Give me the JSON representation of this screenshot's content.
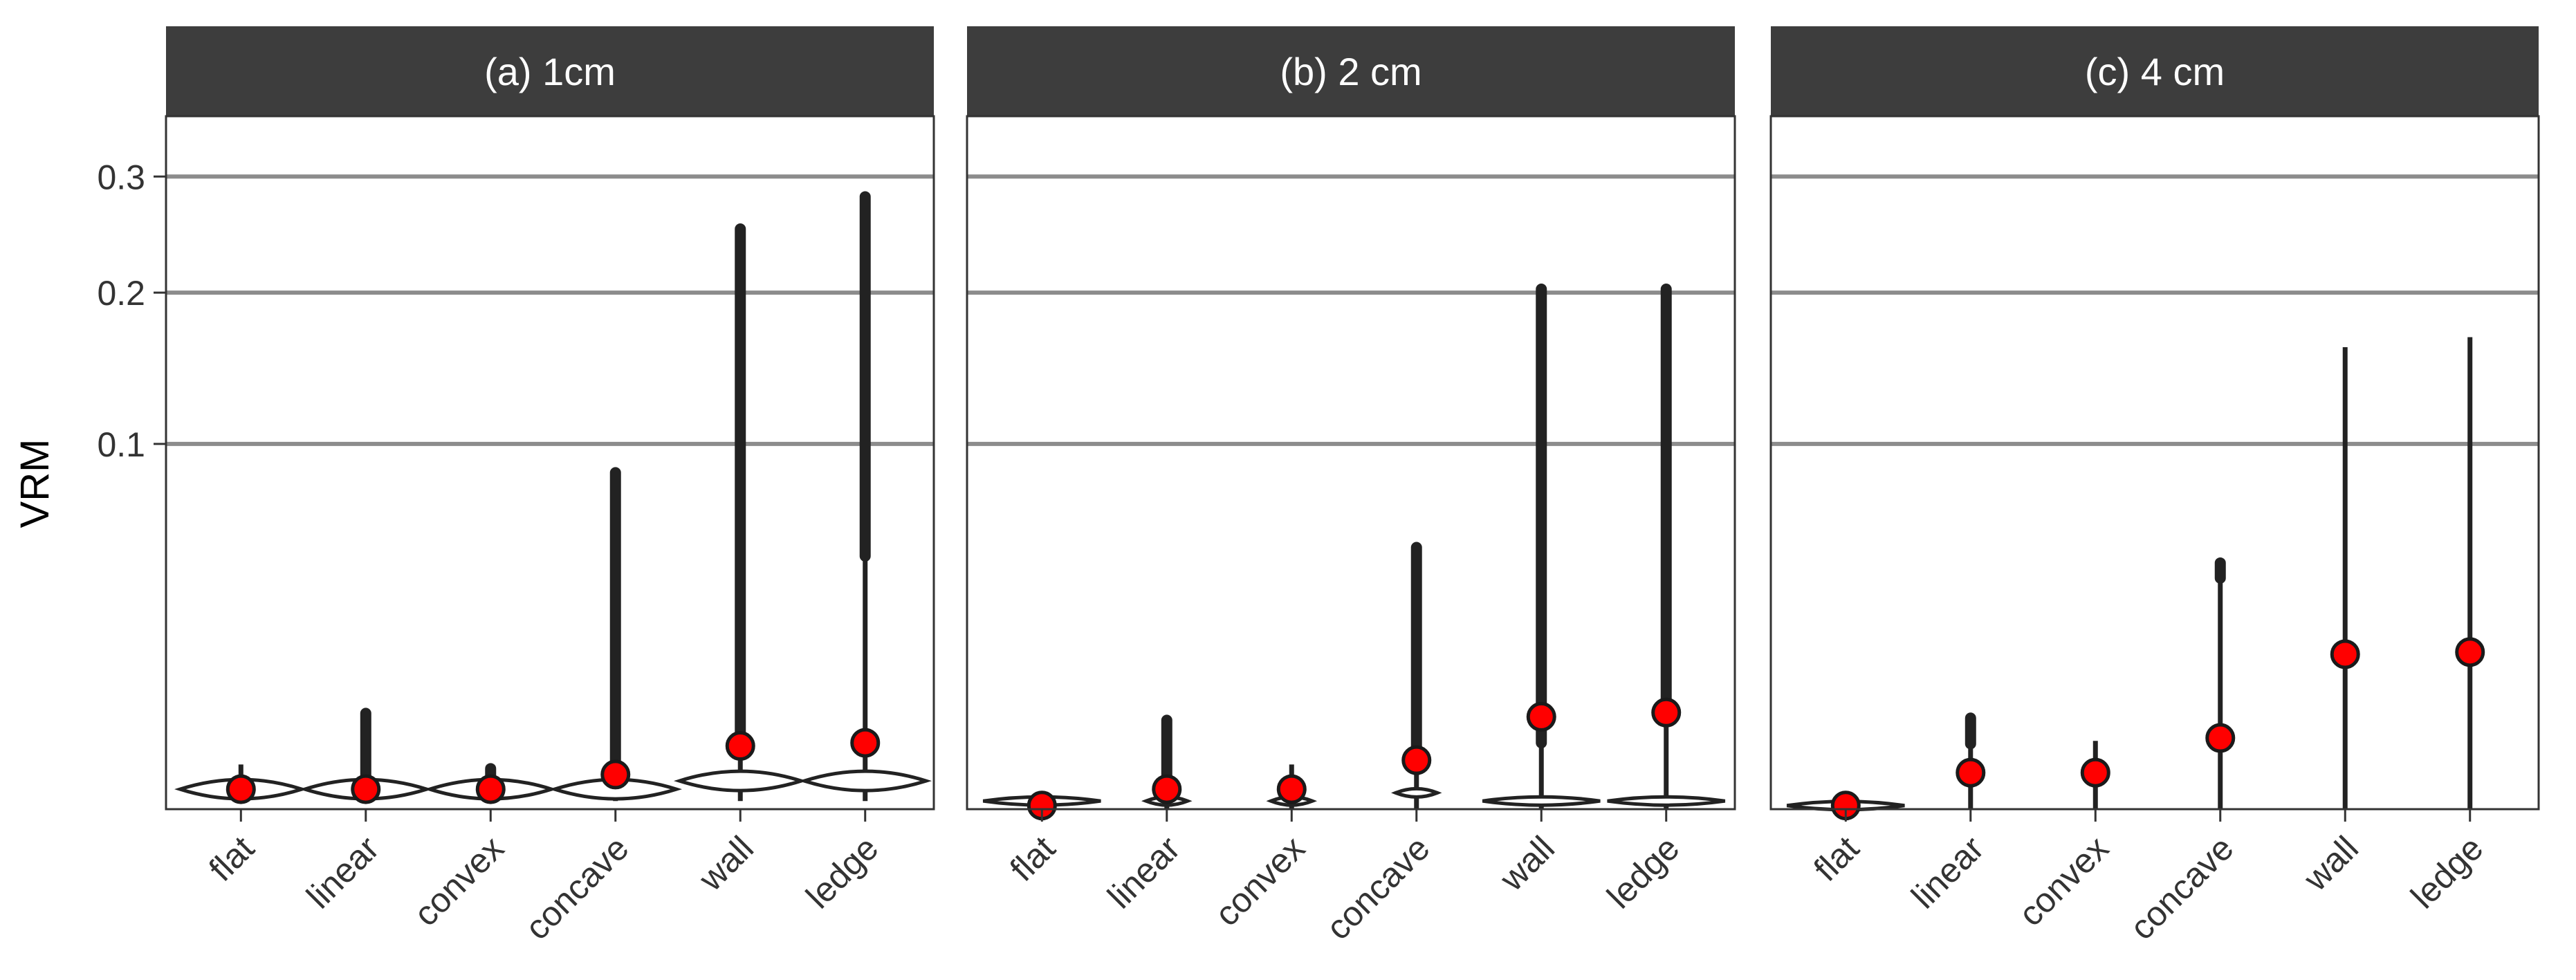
{
  "chart_data": {
    "type": "violin",
    "ylabel": "VRM",
    "xlabel": "",
    "scale": "sqrt",
    "ylim": [
      0,
      0.36
    ],
    "y_ticks": [
      0.1,
      0.2,
      0.3
    ],
    "y_tick_labels": [
      "0.1",
      "0.2",
      "0.3"
    ],
    "gridlines": [
      0.1,
      0.2,
      0.3
    ],
    "categories": [
      "flat",
      "linear",
      "convex",
      "concave",
      "wall",
      "ledge"
    ],
    "colors": {
      "strip_bg": "#3d3d3d",
      "strip_text": "#ffffff",
      "grid": "#8c8c8c",
      "violin": "#222222",
      "mean_fill": "#ff0000",
      "mean_stroke": "#1a1a1a",
      "axis_text": "#333333"
    },
    "panels": [
      {
        "label": "(a) 1cm",
        "series": [
          {
            "category": "flat",
            "mean": 0.0003,
            "whisker": [
              5e-05,
              0.0015
            ],
            "outliers_to": 0.0015,
            "density_peak": 0.0003
          },
          {
            "category": "linear",
            "mean": 0.0003,
            "whisker": [
              5e-05,
              0.0006
            ],
            "outliers_to": 0.0075,
            "density_peak": 0.0003
          },
          {
            "category": "convex",
            "mean": 0.0003,
            "whisker": [
              5e-05,
              0.0008
            ],
            "outliers_to": 0.0015,
            "density_peak": 0.0003
          },
          {
            "category": "concave",
            "mean": 0.0009,
            "whisker": [
              5e-05,
              0.0015
            ],
            "outliers_to": 0.087,
            "density_peak": 0.0003
          },
          {
            "category": "wall",
            "mean": 0.003,
            "whisker": [
              5e-05,
              0.0025
            ],
            "outliers_to": 0.256,
            "density_peak": 0.0006
          },
          {
            "category": "ledge",
            "mean": 0.0033,
            "whisker": [
              5e-05,
              0.048
            ],
            "outliers_to": 0.285,
            "density_peak": 0.0006
          }
        ]
      },
      {
        "label": "(b) 2 cm",
        "series": [
          {
            "category": "flat",
            "mean": 1e-05,
            "whisker": [
              0.0,
              0.0002
            ],
            "outliers_to": 0.0002,
            "density_peak": 5e-05
          },
          {
            "category": "linear",
            "mean": 0.0003,
            "whisker": [
              0.0,
              0.0005
            ],
            "outliers_to": 0.0065,
            "density_peak": 5e-05
          },
          {
            "category": "convex",
            "mean": 0.0003,
            "whisker": [
              0.0,
              0.0015
            ],
            "outliers_to": 0.0015,
            "density_peak": 5e-05
          },
          {
            "category": "concave",
            "mean": 0.0018,
            "whisker": [
              0.0,
              0.0025
            ],
            "outliers_to": 0.053,
            "density_peak": 0.0002
          },
          {
            "category": "wall",
            "mean": 0.0064,
            "whisker": [
              0.0,
              0.0033
            ],
            "outliers_to": 0.206,
            "density_peak": 5e-05
          },
          {
            "category": "ledge",
            "mean": 0.007,
            "whisker": [
              0.0,
              0.009
            ],
            "outliers_to": 0.206,
            "density_peak": 5e-05
          }
        ]
      },
      {
        "label": "(c) 4 cm",
        "series": [
          {
            "category": "flat",
            "mean": 1e-05,
            "whisker": [
              0.0,
              5e-05
            ],
            "outliers_to": 5e-05,
            "density_peak": 1e-05
          },
          {
            "category": "linear",
            "mean": 0.001,
            "whisker": [
              0.0,
              0.0032
            ],
            "outliers_to": 0.0068,
            "density_peak": 0.001
          },
          {
            "category": "convex",
            "mean": 0.001,
            "whisker": [
              0.0,
              0.0035
            ],
            "outliers_to": 0.0035,
            "density_peak": 0.001
          },
          {
            "category": "concave",
            "mean": 0.0038,
            "whisker": [
              0.0,
              0.04
            ],
            "outliers_to": 0.047,
            "density_peak": 0.0038
          },
          {
            "category": "wall",
            "mean": 0.018,
            "whisker": [
              0.0,
              0.16
            ],
            "outliers_to": 0.16,
            "density_peak": 0.018
          },
          {
            "category": "ledge",
            "mean": 0.0185,
            "whisker": [
              0.0,
              0.167
            ],
            "outliers_to": 0.167,
            "density_peak": 0.0185
          }
        ]
      }
    ]
  }
}
